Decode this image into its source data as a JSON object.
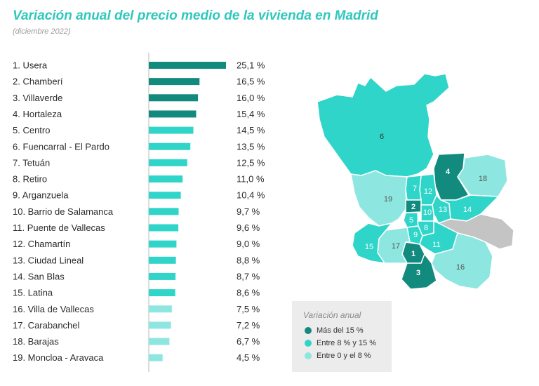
{
  "title": "Variación anual del precio medio de la vivienda en Madrid",
  "subtitle": "(diciembre 2022)",
  "colors": {
    "dark": "#138a7e",
    "medium": "#2fd5c9",
    "light": "#8ee6e0",
    "gray": "#c4c4c4",
    "title": "#2ec8bc"
  },
  "chart_data": {
    "type": "bar",
    "orientation": "horizontal",
    "categories": [
      "1. Usera",
      "2. Chamberí",
      "3. Villaverde",
      "4. Hortaleza",
      "5. Centro",
      "6. Fuencarral - El Pardo",
      "7. Tetuán",
      "8. Retiro",
      "9. Arganzuela",
      "10. Barrio de Salamanca",
      "11. Puente de Vallecas",
      "12. Chamartín",
      "13. Ciudad Lineal",
      "14. San Blas",
      "15. Latina",
      "16. Villa de Vallecas",
      "17. Carabanchel",
      "18. Barajas",
      "19. Moncloa - Aravaca"
    ],
    "values": [
      25.1,
      16.5,
      16.0,
      15.4,
      14.5,
      13.5,
      12.5,
      11.0,
      10.4,
      9.7,
      9.6,
      9.0,
      8.8,
      8.7,
      8.6,
      7.5,
      7.2,
      6.7,
      4.5
    ],
    "value_labels": [
      "25,1 %",
      "16,5 %",
      "16,0 %",
      "15,4 %",
      "14,5 %",
      "13,5 %",
      "12,5 %",
      "11,0 %",
      "10,4 %",
      "9,7 %",
      "9,6 %",
      "9,0 %",
      "8,8 %",
      "8,7 %",
      "8,6 %",
      "7,5 %",
      "7,2 %",
      "6,7 %",
      "4,5 %"
    ],
    "color_groups": [
      "dark",
      "dark",
      "dark",
      "dark",
      "medium",
      "medium",
      "medium",
      "medium",
      "medium",
      "medium",
      "medium",
      "medium",
      "medium",
      "medium",
      "medium",
      "light",
      "light",
      "light",
      "light"
    ],
    "xlim": [
      0,
      25.1
    ],
    "grid": false
  },
  "map": {
    "district_numbers": [
      "1",
      "2",
      "3",
      "4",
      "5",
      "6",
      "7",
      "8",
      "9",
      "10",
      "11",
      "12",
      "13",
      "14",
      "15",
      "16",
      "17",
      "18",
      "19"
    ]
  },
  "legend": {
    "title": "Variación anual",
    "items": [
      {
        "label": "Más del 15 %",
        "color": "#138a7e"
      },
      {
        "label": "Entre 8 % y 15 %",
        "color": "#2fd5c9"
      },
      {
        "label": "Entre 0 y el 8 %",
        "color": "#8ee6e0"
      }
    ]
  }
}
